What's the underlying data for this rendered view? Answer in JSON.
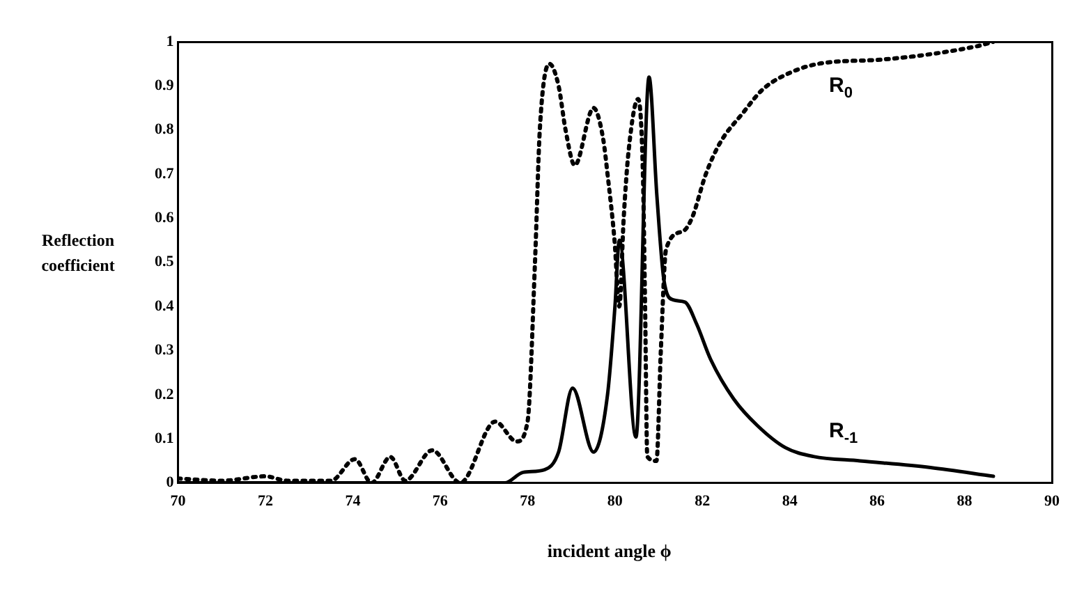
{
  "chart_data": {
    "type": "line",
    "xlabel": "incident angle ϕ",
    "ylabel": "Reflection coefficient",
    "xlim": [
      70,
      90
    ],
    "ylim": [
      0,
      1
    ],
    "xticks": [
      70,
      72,
      74,
      76,
      78,
      80,
      82,
      84,
      86,
      88,
      90
    ],
    "yticks": [
      0,
      0.1,
      0.2,
      0.3,
      0.4,
      0.5,
      0.6,
      0.7,
      0.8,
      0.9,
      1
    ],
    "grid": false,
    "legend": false,
    "marker": "none",
    "series": [
      {
        "name": "R$_{0}$",
        "color": "#000000",
        "line_style": "dotted",
        "x": [
          70,
          71,
          72,
          72.5,
          73.5,
          74.05,
          74.43,
          74.86,
          75.2,
          75.82,
          76.46,
          77.26,
          77.75,
          78.0,
          78.17,
          78.28,
          78.5,
          78.71,
          78.87,
          79.08,
          79.51,
          79.73,
          79.83,
          79.99,
          80.1,
          80.2,
          80.31,
          80.53,
          80.64,
          80.69,
          80.74,
          80.95,
          81.05,
          81.17,
          81.55,
          81.76,
          82.08,
          82.4,
          82.94,
          83.36,
          83.8,
          84.65,
          86.15,
          88.29,
          88.66
        ],
        "values": [
          0.01,
          0.005,
          0.015,
          0.005,
          0.005,
          0.054,
          0,
          0.059,
          0.005,
          0.074,
          0,
          0.139,
          0.094,
          0.139,
          0.5,
          0.8,
          0.95,
          0.9,
          0.8,
          0.72,
          0.85,
          0.78,
          0.7,
          0.55,
          0.4,
          0.6,
          0.75,
          0.87,
          0.7,
          0.4,
          0.06,
          0.05,
          0.3,
          0.53,
          0.57,
          0.6,
          0.7,
          0.77,
          0.84,
          0.89,
          0.92,
          0.95,
          0.96,
          0.99,
          1.0
        ]
      },
      {
        "name": "R$_{-1}$",
        "color": "#000000",
        "line_style": "solid",
        "x": [
          70,
          74,
          77.48,
          77.9,
          78.39,
          78.71,
          79.03,
          79.51,
          79.83,
          80.0,
          80.1,
          80.48,
          80.78,
          80.96,
          81.12,
          81.33,
          81.6,
          81.87,
          82.19,
          82.72,
          83.26,
          83.9,
          84.54,
          85.61,
          87.22,
          88.66
        ],
        "values": [
          0,
          0,
          0,
          0.024,
          0.03,
          0.07,
          0.215,
          0.07,
          0.2,
          0.4,
          0.55,
          0.104,
          0.92,
          0.65,
          0.46,
          0.415,
          0.41,
          0.36,
          0.28,
          0.19,
          0.13,
          0.08,
          0.06,
          0.05,
          0.035,
          0.015
        ]
      }
    ]
  }
}
